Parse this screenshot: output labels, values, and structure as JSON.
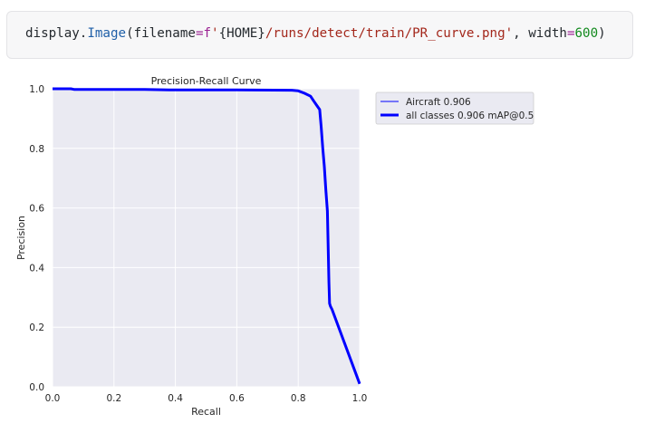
{
  "code_cell": {
    "parts": [
      {
        "cls": "",
        "text": "display."
      },
      {
        "cls": "tok-fn",
        "text": "Image"
      },
      {
        "cls": "",
        "text": "(filename"
      },
      {
        "cls": "tok-op",
        "text": "="
      },
      {
        "cls": "tok-kw",
        "text": "f"
      },
      {
        "cls": "tok-str",
        "text": "'"
      },
      {
        "cls": "",
        "text": "{HOME}"
      },
      {
        "cls": "tok-str",
        "text": "/runs/detect/train/PR_curve.png'"
      },
      {
        "cls": "",
        "text": ", width"
      },
      {
        "cls": "tok-op",
        "text": "="
      },
      {
        "cls": "tok-num",
        "text": "600"
      },
      {
        "cls": "",
        "text": ")"
      }
    ]
  },
  "chart_data": {
    "type": "line",
    "title": "Precision-Recall Curve",
    "xlabel": "Recall",
    "ylabel": "Precision",
    "xlim": [
      0.0,
      1.0
    ],
    "ylim": [
      0.0,
      1.0
    ],
    "xticks": [
      "0.0",
      "0.2",
      "0.4",
      "0.6",
      "0.8",
      "1.0"
    ],
    "yticks": [
      "0.0",
      "0.2",
      "0.4",
      "0.6",
      "0.8",
      "1.0"
    ],
    "grid": true,
    "legend_position": "outside-right-top",
    "series": [
      {
        "name": "Aircraft 0.906",
        "color": "#0000ff",
        "style": "thin",
        "x": [
          0.0,
          0.06,
          0.07,
          0.3,
          0.38,
          0.6,
          0.78,
          0.8,
          0.82,
          0.84,
          0.85,
          0.86,
          0.87,
          0.875,
          0.88,
          0.885,
          0.89,
          0.895,
          0.9,
          0.902,
          0.905,
          0.91,
          1.0
        ],
        "y": [
          1.0,
          1.0,
          0.998,
          0.998,
          0.996,
          0.996,
          0.995,
          0.993,
          0.985,
          0.975,
          0.96,
          0.945,
          0.93,
          0.87,
          0.8,
          0.74,
          0.66,
          0.59,
          0.35,
          0.28,
          0.27,
          0.26,
          0.01
        ]
      },
      {
        "name": "all classes 0.906 mAP@0.5",
        "color": "#0000ff",
        "style": "thick",
        "x": [
          0.0,
          0.06,
          0.07,
          0.3,
          0.38,
          0.6,
          0.78,
          0.8,
          0.82,
          0.84,
          0.85,
          0.86,
          0.87,
          0.875,
          0.88,
          0.885,
          0.89,
          0.895,
          0.9,
          0.902,
          0.905,
          0.91,
          1.0
        ],
        "y": [
          1.0,
          1.0,
          0.998,
          0.998,
          0.996,
          0.996,
          0.995,
          0.993,
          0.985,
          0.975,
          0.96,
          0.945,
          0.93,
          0.87,
          0.8,
          0.74,
          0.66,
          0.59,
          0.35,
          0.28,
          0.27,
          0.26,
          0.01
        ]
      }
    ]
  }
}
